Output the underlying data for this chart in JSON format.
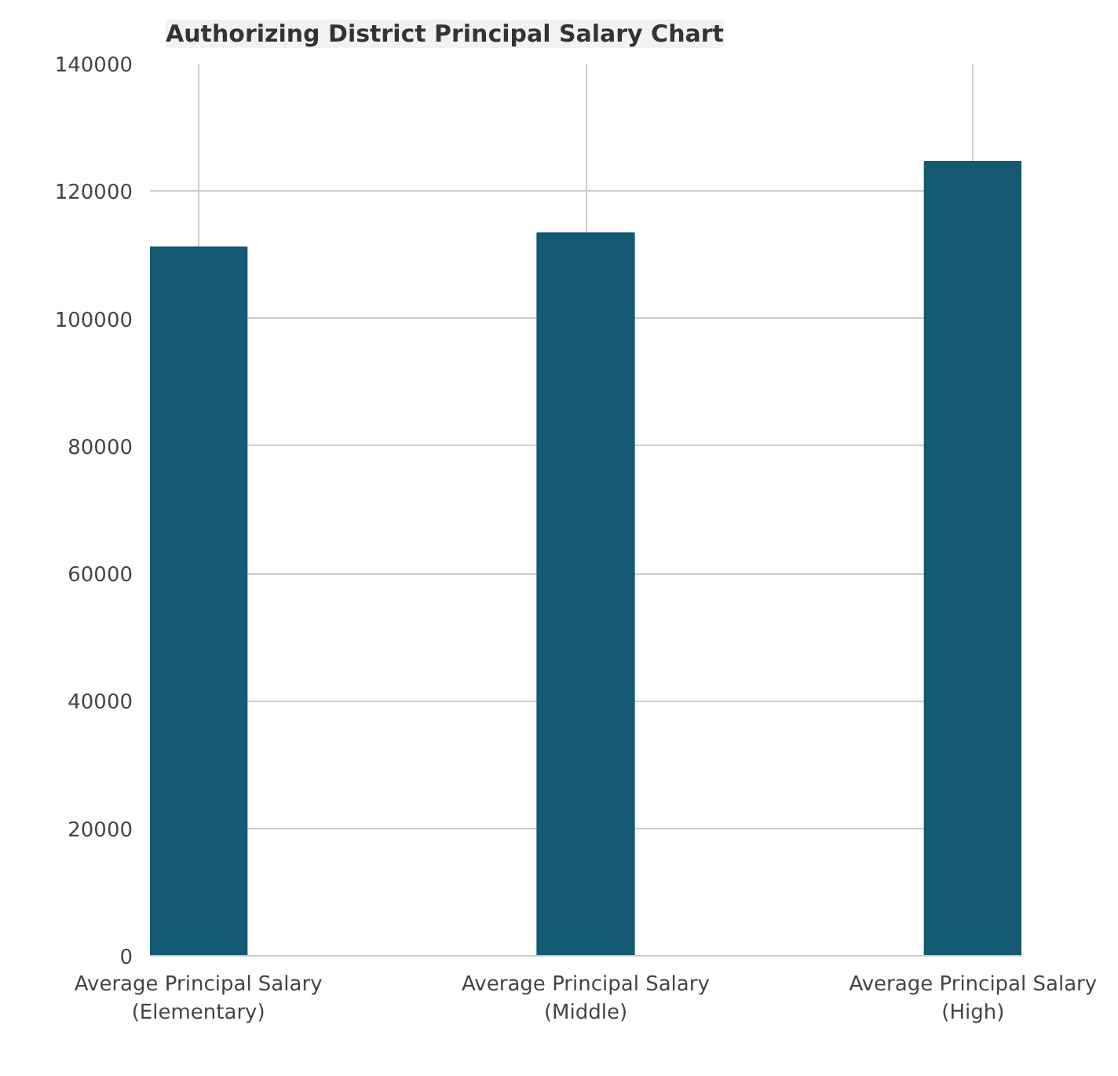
{
  "chart_data": {
    "type": "bar",
    "title": "Authorizing District Principal Salary Chart",
    "categories": [
      "Average Principal Salary (Elementary)",
      "Average Principal Salary (Middle)",
      "Average Principal Salary (High)"
    ],
    "values": [
      111200,
      113400,
      124600
    ],
    "color": "#135a72",
    "ylim": [
      0,
      140000
    ],
    "yticks": [
      0,
      20000,
      40000,
      60000,
      80000,
      100000,
      120000,
      140000
    ],
    "grid": true
  }
}
